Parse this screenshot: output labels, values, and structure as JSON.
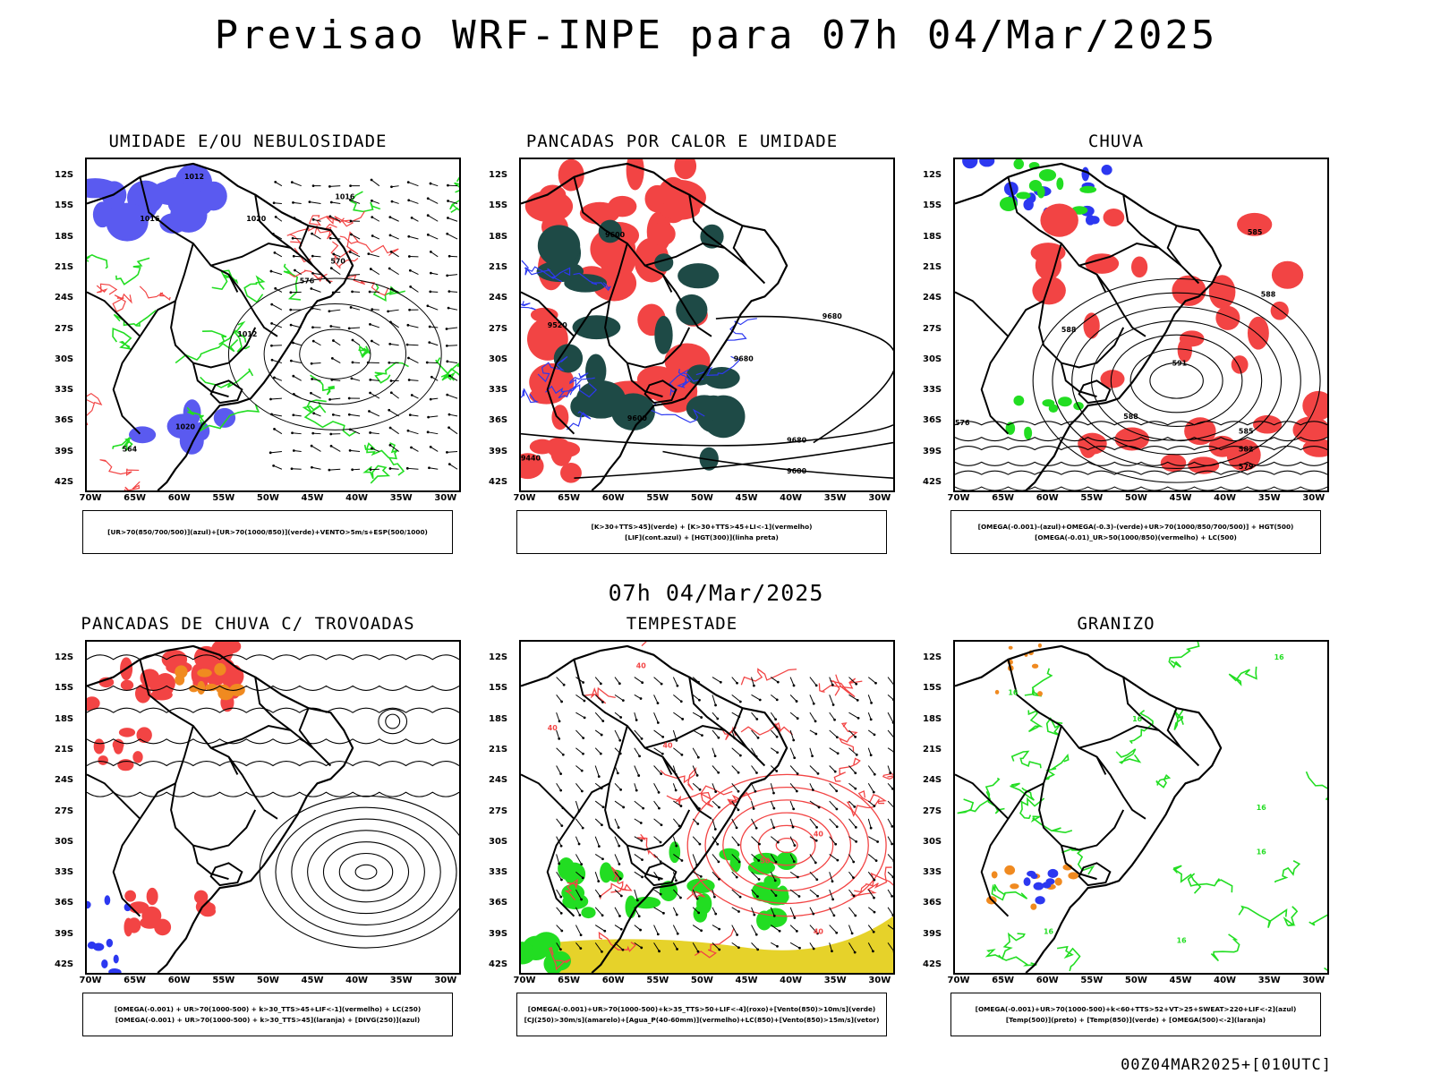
{
  "title": "Previsao WRF-INPE  para 07h 04/Mar/2025",
  "mid_title": "07h 04/Mar/2025",
  "footer": "00Z04MAR2025+[010UTC]",
  "lat_labels": [
    "12S",
    "15S",
    "18S",
    "21S",
    "24S",
    "27S",
    "30S",
    "33S",
    "36S",
    "39S",
    "42S"
  ],
  "lon_labels": [
    "70W",
    "65W",
    "60W",
    "55W",
    "50W",
    "45W",
    "40W",
    "35W",
    "30W"
  ],
  "colors": {
    "blue_fill": "#5a5af0",
    "green": "#22dd22",
    "red": "#f24444",
    "dark_teal": "#1e4a46",
    "orange": "#f08a20",
    "yellow": "#e6d22a",
    "blue_line": "#2c38f0",
    "black": "#000000"
  },
  "panels": [
    {
      "title": "UMIDADE E/OU NEBULOSIDADE",
      "legend": [
        "[UR>70(850/700/500)](azul)+[UR>70(1000/850)](verde)+VENTO>5m/s+ESP(500/1000)"
      ],
      "contour_labels": [
        "1012",
        "1016",
        "1020",
        "1016",
        "1012",
        "1020",
        "576",
        "570",
        "564"
      ]
    },
    {
      "title": "PANCADAS POR CALOR E UMIDADE",
      "legend": [
        "[K>30+TTS>45](verde)  +  [K>30+TTS>45+LI<-1](vermelho)",
        "[LIF](cont.azul)  +  [HGT(300)](linha preta)"
      ],
      "contour_labels": [
        "9680",
        "9600",
        "9680",
        "9520",
        "9440",
        "9600",
        "9600",
        "9680"
      ]
    },
    {
      "title": "CHUVA",
      "legend": [
        "[OMEGA(-0.001)-(azul)+OMEGA(-0.3)-(verde)+UR>70(1000/850/700/500)]  +  HGT(500)",
        "[OMEGA(-0.01)_UR>50(1000/850)(vermelho)  +  LC(500)"
      ],
      "contour_labels": [
        "585",
        "588",
        "588",
        "591",
        "588",
        "585",
        "582",
        "579",
        "576"
      ]
    },
    {
      "title": "PANCADAS DE CHUVA C/ TROVOADAS",
      "legend": [
        "[OMEGA(-0.001)  +  UR>70(1000-500)  +  k>30_TTS>45+LIF<-1](vermelho)  +  LC(250)",
        "[OMEGA(-0.001)  +  UR>70(1000-500)  +  k>30_TTS>45](laranja)  +  [DIVG(250)](azul)"
      ],
      "contour_labels": []
    },
    {
      "title": "TEMPESTADE",
      "legend": [
        "[OMEGA(-0.001)+UR>70(1000-500)+k>35_TTS>50+LIF<-4](roxo)+[Vento(850)>10m/s](verde)",
        "[CJ(250)>30m/s](amarelo)+[Agua_P(40-60mm)](vermelho)+LC(850)+[Vento(850)>15m/s](vetor)"
      ],
      "contour_labels": [
        "40",
        "40",
        "50",
        "40",
        "40",
        "40"
      ]
    },
    {
      "title": "GRANIZO",
      "legend": [
        "[OMEGA(-0.001)+UR>70(1000-500)+k<60+TTS>52+VT>25+SWEAT>220+LIF<-2](azul)",
        "[Temp(500)](preto)  +  [Temp(850)](verde)  +  [OMEGA(500)<-2](laranja)"
      ],
      "contour_labels": [
        "16",
        "16",
        "16",
        "16",
        "16",
        "16",
        "16"
      ]
    }
  ]
}
